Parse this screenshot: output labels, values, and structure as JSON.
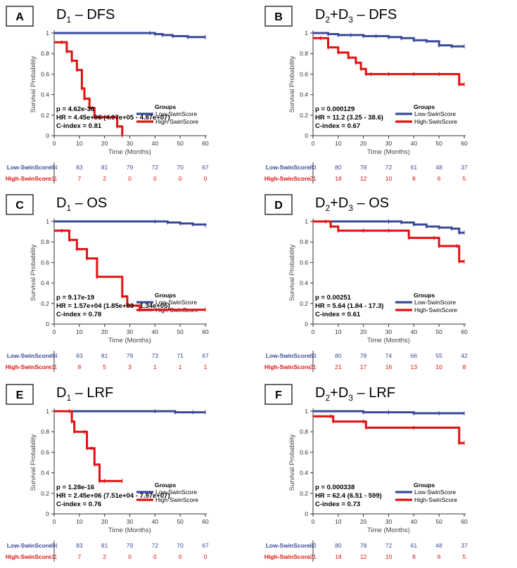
{
  "colors": {
    "low": "#3a4a9a",
    "high": "#e01010",
    "axis": "#333333"
  },
  "chart_data": [
    {
      "type": "line",
      "letter": "A",
      "title_main": "D",
      "title_sub": "1",
      "title_rest": " – DFS",
      "xlabel": "Time (Months)",
      "ylabel": "Survival Probability",
      "xlim": [
        0,
        60
      ],
      "ylim": [
        0,
        1
      ],
      "x_ticks": [
        "0",
        "10",
        "20",
        "30",
        "40",
        "50",
        "60"
      ],
      "y_ticks": [
        "0",
        "0.2",
        "0.4",
        "0.6",
        "0.8",
        "1"
      ],
      "stats": [
        "p = 4.62e-36",
        "HR = 4.45e+06 (4.07e+05 - 4.87e+07)",
        "C-index = 0.81"
      ],
      "legend_title": "Groups",
      "series": [
        {
          "name": "Low-SwinScore",
          "color": "#3a4a9a",
          "x": [
            0,
            38,
            40,
            43,
            47,
            53,
            60
          ],
          "y": [
            1,
            1,
            0.99,
            0.98,
            0.97,
            0.96,
            0.96
          ]
        },
        {
          "name": "High-SwinScore",
          "color": "#e01010",
          "x": [
            0,
            3,
            5,
            7,
            9,
            11,
            12,
            14,
            16,
            19,
            25,
            27
          ],
          "y": [
            0.91,
            0.91,
            0.82,
            0.73,
            0.64,
            0.46,
            0.36,
            0.27,
            0.18,
            0.18,
            0.09,
            0
          ]
        }
      ],
      "risk_table": {
        "low_label": "Low-SwinScore",
        "high_label": "High-SwinScore",
        "low": [
          "84",
          "83",
          "81",
          "79",
          "72",
          "70",
          "67"
        ],
        "high": [
          "11",
          "7",
          "2",
          "0",
          "0",
          "0",
          "0"
        ]
      }
    },
    {
      "type": "line",
      "letter": "B",
      "title_main": "D",
      "title_sub": "2",
      "title_rest": "+D",
      "title_sub2": "3",
      "title_rest2": " – DFS",
      "xlabel": "Time (Months)",
      "ylabel": "Survival Probability",
      "xlim": [
        0,
        60
      ],
      "ylim": [
        0,
        1
      ],
      "x_ticks": [
        "0",
        "10",
        "20",
        "30",
        "40",
        "50",
        "60"
      ],
      "y_ticks": [
        "0",
        "0.2",
        "0.4",
        "0.6",
        "0.8",
        "1"
      ],
      "stats": [
        "p = 0.000129",
        "HR = 11.2 (3.25 - 38.6)",
        "C-index = 0.67"
      ],
      "legend_title": "Groups",
      "series": [
        {
          "name": "Low-SwinScore",
          "color": "#3a4a9a",
          "x": [
            0,
            6,
            10,
            15,
            20,
            25,
            30,
            35,
            40,
            45,
            50,
            55,
            60
          ],
          "y": [
            1,
            0.99,
            0.98,
            0.98,
            0.97,
            0.97,
            0.96,
            0.95,
            0.93,
            0.92,
            0.88,
            0.87,
            0.87
          ]
        },
        {
          "name": "High-SwinScore",
          "color": "#e01010",
          "x": [
            0,
            3,
            6,
            10,
            14,
            17,
            19,
            21,
            23,
            30,
            40,
            50,
            58,
            60
          ],
          "y": [
            0.95,
            0.95,
            0.86,
            0.81,
            0.76,
            0.71,
            0.65,
            0.6,
            0.6,
            0.6,
            0.6,
            0.6,
            0.5,
            0.5
          ]
        }
      ],
      "risk_table": {
        "low_label": "Low-SwinScore",
        "high_label": "High-SwinScore",
        "low": [
          "83",
          "80",
          "78",
          "72",
          "61",
          "48",
          "37"
        ],
        "high": [
          "21",
          "18",
          "12",
          "10",
          "8",
          "6",
          "5"
        ]
      }
    },
    {
      "type": "line",
      "letter": "C",
      "title_main": "D",
      "title_sub": "1",
      "title_rest": " – OS",
      "xlabel": "Time (Months)",
      "ylabel": "Survival Probability",
      "xlim": [
        0,
        60
      ],
      "ylim": [
        0,
        1
      ],
      "x_ticks": [
        "0",
        "10",
        "20",
        "30",
        "40",
        "50",
        "60"
      ],
      "y_ticks": [
        "0",
        "0.2",
        "0.4",
        "0.6",
        "0.8",
        "1"
      ],
      "stats": [
        "p = 9.17e-19",
        "HR = 1.57e+04 (1.85e+03 - 1.34e+05)",
        "C-index = 0.78"
      ],
      "legend_title": "Groups",
      "series": [
        {
          "name": "Low-SwinScore",
          "color": "#3a4a9a",
          "x": [
            0,
            40,
            45,
            50,
            55,
            60
          ],
          "y": [
            1,
            1,
            0.99,
            0.98,
            0.97,
            0.96
          ]
        },
        {
          "name": "High-SwinScore",
          "color": "#e01010",
          "x": [
            0,
            3,
            6,
            9,
            13,
            17,
            27,
            29,
            34,
            60
          ],
          "y": [
            0.91,
            0.91,
            0.82,
            0.73,
            0.64,
            0.46,
            0.27,
            0.18,
            0.14,
            0.14
          ]
        }
      ],
      "risk_table": {
        "low_label": "Low-SwinScore",
        "high_label": "High-SwinScore",
        "low": [
          "84",
          "83",
          "81",
          "79",
          "73",
          "71",
          "67"
        ],
        "high": [
          "11",
          "8",
          "5",
          "3",
          "1",
          "1",
          "1"
        ]
      }
    },
    {
      "type": "line",
      "letter": "D",
      "title_main": "D",
      "title_sub": "2",
      "title_rest": "+D",
      "title_sub2": "3",
      "title_rest2": " – OS",
      "xlabel": "Time (Months)",
      "ylabel": "Survival Probability",
      "xlim": [
        0,
        60
      ],
      "ylim": [
        0,
        1
      ],
      "x_ticks": [
        "0",
        "10",
        "20",
        "30",
        "40",
        "50",
        "60"
      ],
      "y_ticks": [
        "0",
        "0.2",
        "0.4",
        "0.6",
        "0.8",
        "1"
      ],
      "stats": [
        "p = 0.00251",
        "HR = 5.64 (1.84 - 17.3)",
        "C-index = 0.61"
      ],
      "legend_title": "Groups",
      "series": [
        {
          "name": "Low-SwinScore",
          "color": "#3a4a9a",
          "x": [
            0,
            30,
            35,
            40,
            45,
            50,
            55,
            58,
            60
          ],
          "y": [
            1,
            1,
            0.99,
            0.97,
            0.95,
            0.94,
            0.93,
            0.89,
            0.89
          ]
        },
        {
          "name": "High-SwinScore",
          "color": "#e01010",
          "x": [
            0,
            5,
            7,
            10,
            20,
            30,
            38,
            48,
            50,
            57,
            58,
            60
          ],
          "y": [
            1,
            1,
            0.95,
            0.91,
            0.91,
            0.91,
            0.84,
            0.84,
            0.76,
            0.76,
            0.61,
            0.61
          ]
        }
      ],
      "risk_table": {
        "low_label": "Low-SwinScore",
        "high_label": "High-SwinScore",
        "low": [
          "83",
          "80",
          "78",
          "74",
          "66",
          "55",
          "42"
        ],
        "high": [
          "21",
          "21",
          "17",
          "16",
          "13",
          "10",
          "8"
        ]
      }
    },
    {
      "type": "line",
      "letter": "E",
      "title_main": "D",
      "title_sub": "1",
      "title_rest": " – LRF",
      "xlabel": "Time (Months)",
      "ylabel": "Survival Probability",
      "xlim": [
        0,
        60
      ],
      "ylim": [
        0,
        1
      ],
      "x_ticks": [
        "0",
        "10",
        "20",
        "30",
        "40",
        "50",
        "60"
      ],
      "y_ticks": [
        "0",
        "0.2",
        "0.4",
        "0.6",
        "0.8",
        "1"
      ],
      "stats": [
        "p = 1.28e-16",
        "HR = 2.45e+06 (7.51e+04 - 7.97e+07)",
        "C-index = 0.76"
      ],
      "legend_title": "Groups",
      "series": [
        {
          "name": "Low-SwinScore",
          "color": "#3a4a9a",
          "x": [
            0,
            40,
            48,
            55,
            60
          ],
          "y": [
            1,
            1,
            0.99,
            0.99,
            0.99
          ]
        },
        {
          "name": "High-SwinScore",
          "color": "#e01010",
          "x": [
            0,
            6,
            7,
            8,
            12,
            13,
            15,
            16,
            18,
            20,
            27
          ],
          "y": [
            1,
            1,
            0.9,
            0.8,
            0.8,
            0.64,
            0.64,
            0.48,
            0.32,
            0.32,
            0.32
          ]
        }
      ],
      "risk_table": {
        "low_label": "Low-SwinScore",
        "high_label": "High-SwinScore",
        "low": [
          "84",
          "83",
          "81",
          "79",
          "72",
          "70",
          "67"
        ],
        "high": [
          "11",
          "7",
          "2",
          "0",
          "0",
          "0",
          "0"
        ]
      }
    },
    {
      "type": "line",
      "letter": "F",
      "title_main": "D",
      "title_sub": "2",
      "title_rest": "+D",
      "title_sub2": "3",
      "title_rest2": " – LRF",
      "xlabel": "Time (Months)",
      "ylabel": "Survival Probability",
      "xlim": [
        0,
        60
      ],
      "ylim": [
        0,
        1
      ],
      "x_ticks": [
        "0",
        "10",
        "20",
        "30",
        "40",
        "50",
        "60"
      ],
      "y_ticks": [
        "0",
        "0.2",
        "0.4",
        "0.6",
        "0.8",
        "1"
      ],
      "stats": [
        "p = 0.000338",
        "HR = 62.4 (6.51 - 599)",
        "C-index = 0.73"
      ],
      "legend_title": "Groups",
      "series": [
        {
          "name": "Low-SwinScore",
          "color": "#3a4a9a",
          "x": [
            0,
            20,
            30,
            40,
            50,
            60
          ],
          "y": [
            1,
            0.99,
            0.99,
            0.98,
            0.98,
            0.98
          ]
        },
        {
          "name": "High-SwinScore",
          "color": "#e01010",
          "x": [
            0,
            7,
            8,
            20,
            21,
            40,
            58,
            60
          ],
          "y": [
            0.95,
            0.95,
            0.9,
            0.9,
            0.84,
            0.84,
            0.69,
            0.69
          ]
        }
      ],
      "risk_table": {
        "low_label": "Low-SwinScore",
        "high_label": "High-SwinScore",
        "low": [
          "83",
          "80",
          "78",
          "72",
          "61",
          "48",
          "37"
        ],
        "high": [
          "21",
          "18",
          "12",
          "10",
          "8",
          "6",
          "5"
        ]
      }
    }
  ]
}
